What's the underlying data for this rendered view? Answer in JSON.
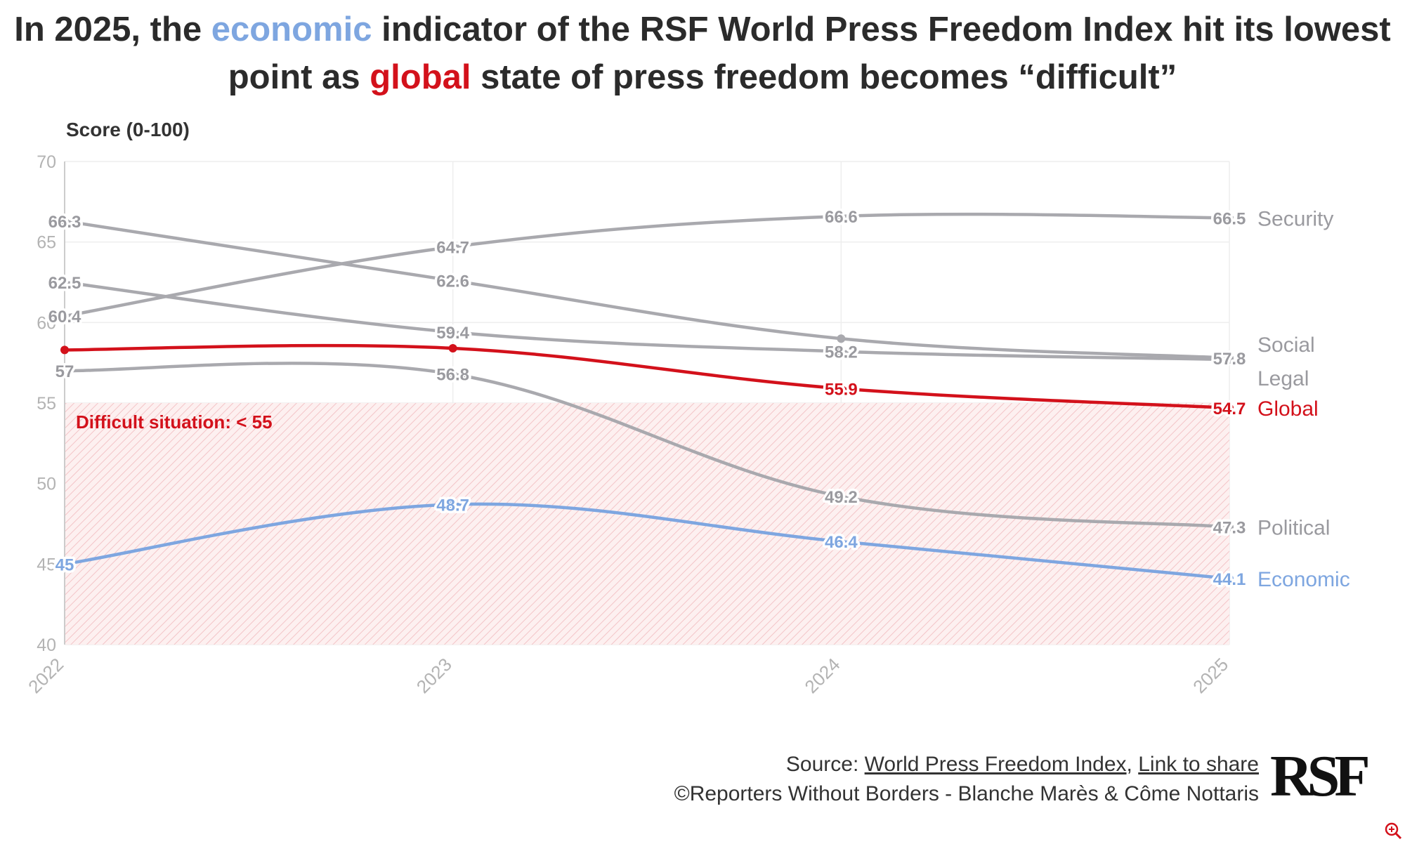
{
  "title": {
    "part1": "In 2025, the ",
    "highlight1": "economic",
    "part2": " indicator of the RSF World Press Freedom Index hit its lowest point as ",
    "highlight2": "global",
    "part3": " state of press freedom becomes “difficult”"
  },
  "colors": {
    "economic": "#7ea6e0",
    "global": "#d3111b",
    "grey_series": "#a9a9ae",
    "zone_fill": "#fbe3e4"
  },
  "chart_data": {
    "type": "line",
    "ylabel": "Score (0-100)",
    "x": [
      "2022",
      "2023",
      "2024",
      "2025"
    ],
    "ylim": [
      40,
      70
    ],
    "yticks": [
      40,
      45,
      50,
      55,
      60,
      65,
      70
    ],
    "grid": true,
    "series": [
      {
        "name": "Security",
        "values": [
          60.4,
          64.7,
          66.6,
          66.5
        ],
        "labels": [
          "60.4",
          "64.7",
          "66.6",
          "66.5"
        ],
        "color": "#a9a9ae"
      },
      {
        "name": "Social",
        "values": [
          66.3,
          62.6,
          59,
          57.8
        ],
        "labels": [
          "66.3",
          "62.6",
          "",
          "57.8"
        ],
        "color": "#a9a9ae"
      },
      {
        "name": "Legal",
        "values": [
          62.5,
          59.4,
          58.2,
          57.7
        ],
        "labels": [
          "62.5",
          "59.4",
          "58.2",
          ""
        ],
        "color": "#a9a9ae"
      },
      {
        "name": "Global",
        "values": [
          58.3,
          58.4,
          55.9,
          54.7
        ],
        "labels": [
          "",
          "",
          "55.9",
          "54.7"
        ],
        "color": "#d3111b"
      },
      {
        "name": "Political",
        "values": [
          57,
          56.8,
          49.2,
          47.3
        ],
        "labels": [
          "57",
          "56.8",
          "49.2",
          "47.3"
        ],
        "color": "#a9a9ae"
      },
      {
        "name": "Economic",
        "values": [
          45,
          48.7,
          46.4,
          44.1
        ],
        "labels": [
          "45",
          "48.7",
          "46.4",
          "44.1"
        ],
        "color": "#7ea6e0"
      }
    ],
    "zone": {
      "from": 40,
      "to": 55,
      "label": "Difficult situation: < 55"
    }
  },
  "footer": {
    "source_prefix": "Source: ",
    "source_link": "World Press Freedom Index",
    "separator": ", ",
    "share_link": "Link to share",
    "credit": "©Reporters Without Borders - Blanche Marès & Côme Nottaris"
  },
  "logo": "RSF",
  "icons": {
    "zoom": "zoom-in-icon"
  }
}
